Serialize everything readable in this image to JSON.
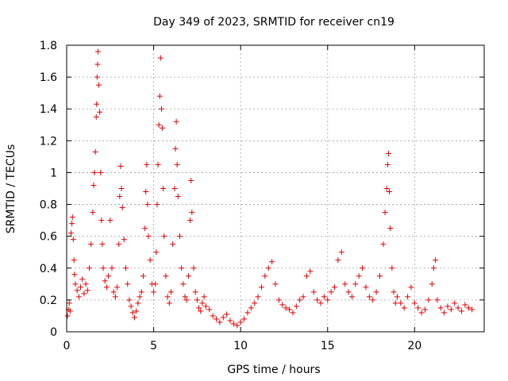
{
  "chart_data": {
    "type": "scatter",
    "title": "Day 349 of 2023, SRMTID for receiver cn19",
    "xlabel": "GPS time / hours",
    "ylabel": "SRMTID / TECUs",
    "xlim": [
      0,
      24
    ],
    "ylim": [
      0,
      1.8
    ],
    "xticks": [
      0,
      5,
      10,
      15,
      20
    ],
    "xtick_labels": [
      "0",
      "5",
      "10",
      "15",
      "20"
    ],
    "yticks": [
      0,
      0.2,
      0.4,
      0.6,
      0.8,
      1.0,
      1.2,
      1.4,
      1.6,
      1.8
    ],
    "ytick_labels": [
      "0",
      "0.2",
      "0.4",
      "0.6",
      "0.8",
      "1",
      "1.2",
      "1.4",
      "1.6",
      "1.8"
    ],
    "grid": true,
    "marker": "+",
    "color": "#e00000",
    "series": [
      {
        "name": "SRMTID",
        "points": [
          [
            0.05,
            0.1
          ],
          [
            0.1,
            0.14
          ],
          [
            0.15,
            0.18
          ],
          [
            0.2,
            0.13
          ],
          [
            0.25,
            0.62
          ],
          [
            0.3,
            0.68
          ],
          [
            0.33,
            0.72
          ],
          [
            0.38,
            0.58
          ],
          [
            0.42,
            0.45
          ],
          [
            0.45,
            0.36
          ],
          [
            0.5,
            0.3
          ],
          [
            0.6,
            0.26
          ],
          [
            0.7,
            0.22
          ],
          [
            0.8,
            0.28
          ],
          [
            0.9,
            0.33
          ],
          [
            1.0,
            0.24
          ],
          [
            1.1,
            0.3
          ],
          [
            1.2,
            0.26
          ],
          [
            1.3,
            0.4
          ],
          [
            1.4,
            0.55
          ],
          [
            1.5,
            0.75
          ],
          [
            1.55,
            0.92
          ],
          [
            1.6,
            1.0
          ],
          [
            1.65,
            1.13
          ],
          [
            1.7,
            1.35
          ],
          [
            1.72,
            1.43
          ],
          [
            1.75,
            1.6
          ],
          [
            1.78,
            1.68
          ],
          [
            1.8,
            1.76
          ],
          [
            1.85,
            1.55
          ],
          [
            1.9,
            1.38
          ],
          [
            1.95,
            1.0
          ],
          [
            2.0,
            0.7
          ],
          [
            2.05,
            0.55
          ],
          [
            2.1,
            0.4
          ],
          [
            2.2,
            0.32
          ],
          [
            2.3,
            0.28
          ],
          [
            2.4,
            0.35
          ],
          [
            2.5,
            0.7
          ],
          [
            2.6,
            0.4
          ],
          [
            2.7,
            0.25
          ],
          [
            2.8,
            0.22
          ],
          [
            2.9,
            0.28
          ],
          [
            3.0,
            0.55
          ],
          [
            3.05,
            0.85
          ],
          [
            3.1,
            1.04
          ],
          [
            3.15,
            0.9
          ],
          [
            3.2,
            0.78
          ],
          [
            3.3,
            0.58
          ],
          [
            3.4,
            0.4
          ],
          [
            3.5,
            0.3
          ],
          [
            3.6,
            0.2
          ],
          [
            3.7,
            0.16
          ],
          [
            3.8,
            0.12
          ],
          [
            3.9,
            0.09
          ],
          [
            4.0,
            0.13
          ],
          [
            4.1,
            0.18
          ],
          [
            4.2,
            0.22
          ],
          [
            4.3,
            0.25
          ],
          [
            4.4,
            0.35
          ],
          [
            4.5,
            0.65
          ],
          [
            4.55,
            0.88
          ],
          [
            4.6,
            1.05
          ],
          [
            4.65,
            0.8
          ],
          [
            4.7,
            0.6
          ],
          [
            4.8,
            0.45
          ],
          [
            4.9,
            0.3
          ],
          [
            5.0,
            0.25
          ],
          [
            5.1,
            0.3
          ],
          [
            5.15,
            0.5
          ],
          [
            5.2,
            0.8
          ],
          [
            5.25,
            1.05
          ],
          [
            5.3,
            1.3
          ],
          [
            5.35,
            1.48
          ],
          [
            5.4,
            1.72
          ],
          [
            5.45,
            1.4
          ],
          [
            5.5,
            1.28
          ],
          [
            5.55,
            0.9
          ],
          [
            5.6,
            0.6
          ],
          [
            5.7,
            0.35
          ],
          [
            5.8,
            0.22
          ],
          [
            5.9,
            0.18
          ],
          [
            6.0,
            0.25
          ],
          [
            6.1,
            0.55
          ],
          [
            6.2,
            0.9
          ],
          [
            6.25,
            1.15
          ],
          [
            6.3,
            1.32
          ],
          [
            6.35,
            1.05
          ],
          [
            6.4,
            0.85
          ],
          [
            6.5,
            0.6
          ],
          [
            6.6,
            0.4
          ],
          [
            6.7,
            0.3
          ],
          [
            6.8,
            0.22
          ],
          [
            6.9,
            0.2
          ],
          [
            7.0,
            0.35
          ],
          [
            7.1,
            0.7
          ],
          [
            7.15,
            0.95
          ],
          [
            7.2,
            0.75
          ],
          [
            7.3,
            0.4
          ],
          [
            7.4,
            0.25
          ],
          [
            7.5,
            0.2
          ],
          [
            7.6,
            0.15
          ],
          [
            7.7,
            0.13
          ],
          [
            7.8,
            0.18
          ],
          [
            7.9,
            0.22
          ],
          [
            8.0,
            0.16
          ],
          [
            8.2,
            0.14
          ],
          [
            8.4,
            0.1
          ],
          [
            8.6,
            0.08
          ],
          [
            8.8,
            0.06
          ],
          [
            9.0,
            0.09
          ],
          [
            9.2,
            0.11
          ],
          [
            9.4,
            0.07
          ],
          [
            9.6,
            0.05
          ],
          [
            9.8,
            0.04
          ],
          [
            10.0,
            0.06
          ],
          [
            10.2,
            0.08
          ],
          [
            10.4,
            0.12
          ],
          [
            10.6,
            0.15
          ],
          [
            10.8,
            0.18
          ],
          [
            11.0,
            0.22
          ],
          [
            11.2,
            0.28
          ],
          [
            11.4,
            0.35
          ],
          [
            11.6,
            0.4
          ],
          [
            11.8,
            0.44
          ],
          [
            12.0,
            0.3
          ],
          [
            12.2,
            0.2
          ],
          [
            12.4,
            0.17
          ],
          [
            12.6,
            0.15
          ],
          [
            12.8,
            0.14
          ],
          [
            13.0,
            0.12
          ],
          [
            13.2,
            0.16
          ],
          [
            13.4,
            0.2
          ],
          [
            13.6,
            0.22
          ],
          [
            13.8,
            0.35
          ],
          [
            14.0,
            0.38
          ],
          [
            14.2,
            0.25
          ],
          [
            14.4,
            0.2
          ],
          [
            14.6,
            0.18
          ],
          [
            14.8,
            0.22
          ],
          [
            15.0,
            0.2
          ],
          [
            15.2,
            0.25
          ],
          [
            15.4,
            0.28
          ],
          [
            15.6,
            0.45
          ],
          [
            15.8,
            0.5
          ],
          [
            16.0,
            0.3
          ],
          [
            16.2,
            0.25
          ],
          [
            16.4,
            0.22
          ],
          [
            16.6,
            0.3
          ],
          [
            16.8,
            0.35
          ],
          [
            17.0,
            0.4
          ],
          [
            17.2,
            0.28
          ],
          [
            17.4,
            0.22
          ],
          [
            17.6,
            0.2
          ],
          [
            17.8,
            0.25
          ],
          [
            18.0,
            0.35
          ],
          [
            18.2,
            0.55
          ],
          [
            18.3,
            0.75
          ],
          [
            18.4,
            0.9
          ],
          [
            18.45,
            1.05
          ],
          [
            18.5,
            1.12
          ],
          [
            18.55,
            0.88
          ],
          [
            18.6,
            0.65
          ],
          [
            18.7,
            0.4
          ],
          [
            18.8,
            0.25
          ],
          [
            18.9,
            0.18
          ],
          [
            19.0,
            0.22
          ],
          [
            19.2,
            0.18
          ],
          [
            19.4,
            0.15
          ],
          [
            19.6,
            0.22
          ],
          [
            19.8,
            0.28
          ],
          [
            20.0,
            0.18
          ],
          [
            20.2,
            0.15
          ],
          [
            20.4,
            0.12
          ],
          [
            20.6,
            0.14
          ],
          [
            20.8,
            0.2
          ],
          [
            21.0,
            0.3
          ],
          [
            21.1,
            0.4
          ],
          [
            21.2,
            0.45
          ],
          [
            21.3,
            0.2
          ],
          [
            21.5,
            0.15
          ],
          [
            21.7,
            0.12
          ],
          [
            21.9,
            0.16
          ],
          [
            22.1,
            0.14
          ],
          [
            22.3,
            0.18
          ],
          [
            22.5,
            0.15
          ],
          [
            22.7,
            0.13
          ],
          [
            22.9,
            0.17
          ],
          [
            23.1,
            0.15
          ],
          [
            23.3,
            0.14
          ]
        ]
      }
    ]
  }
}
